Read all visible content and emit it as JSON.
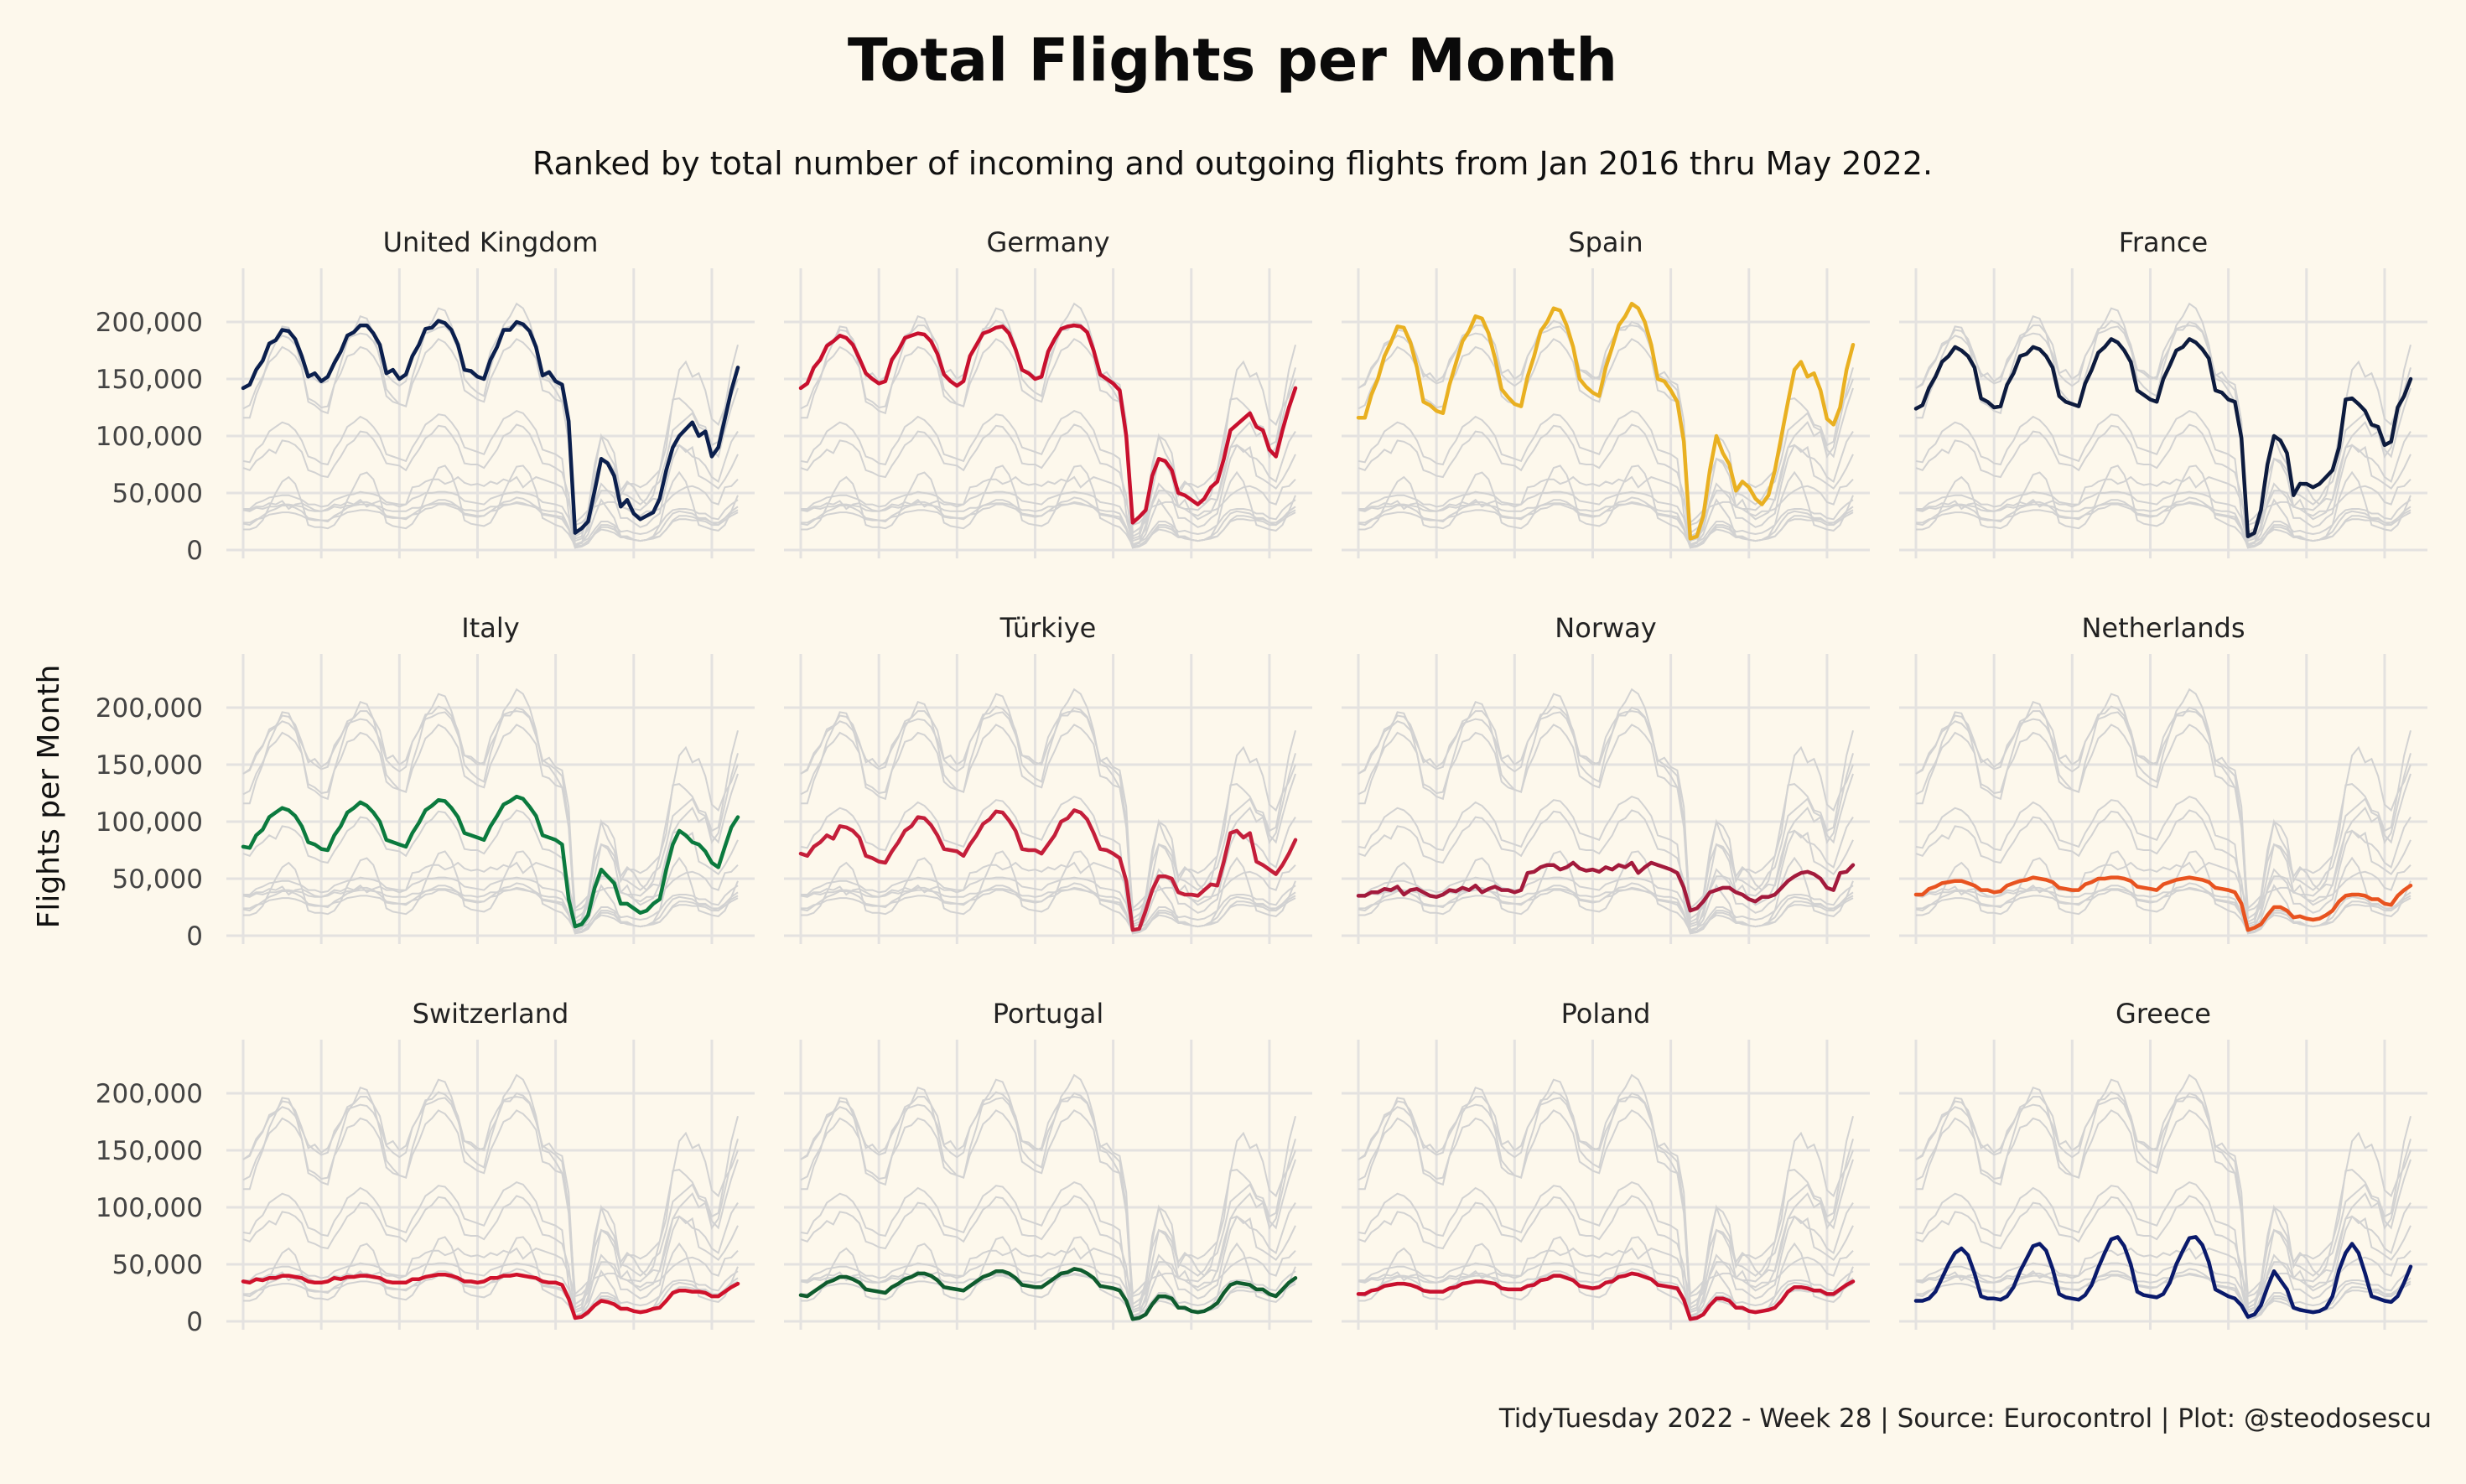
{
  "chart_data": {
    "type": "line",
    "title": "Total Flights per Month",
    "subtitle": "Ranked by total number of incoming and outgoing flights from Jan 2016 thru May 2022.",
    "ylabel": "Flights per Month",
    "xlabel": "",
    "caption": "TidyTuesday 2022 - Week 28 | Source: Eurocontrol | Plot: @steodosescu",
    "x_start": "2016-01",
    "x_end": "2022-05",
    "ylim": [
      0,
      225000
    ],
    "yticks": [
      0,
      50000,
      100000,
      150000,
      200000
    ],
    "ytick_labels": [
      "0",
      "50,000",
      "100,000",
      "150,000",
      "200,000"
    ],
    "grid": true,
    "layout": "facet 3 rows x 4 columns, ranked",
    "series": [
      {
        "name": "United Kingdom",
        "color": "#0b1f4d",
        "values": [
          142000,
          145000,
          158000,
          166000,
          181000,
          184000,
          193000,
          192000,
          185000,
          170000,
          152000,
          155000,
          148000,
          152000,
          164000,
          174000,
          188000,
          191000,
          197000,
          197000,
          190000,
          180000,
          155000,
          158000,
          150000,
          154000,
          170000,
          180000,
          194000,
          195000,
          201000,
          199000,
          193000,
          180000,
          158000,
          157000,
          152000,
          150000,
          167000,
          178000,
          193000,
          193000,
          200000,
          198000,
          192000,
          178000,
          153000,
          156000,
          148000,
          145000,
          113000,
          15000,
          19000,
          25000,
          52000,
          80000,
          76000,
          65000,
          38000,
          44000,
          32000,
          27000,
          30000,
          33000,
          45000,
          70000,
          90000,
          100000,
          106000,
          112000,
          100000,
          104000,
          82000,
          90000,
          115000,
          140000,
          160000
        ]
      },
      {
        "name": "Germany",
        "color": "#c8102e",
        "values": [
          142000,
          146000,
          160000,
          167000,
          179000,
          183000,
          188000,
          186000,
          180000,
          168000,
          155000,
          150000,
          146000,
          148000,
          167000,
          175000,
          186000,
          188000,
          190000,
          189000,
          183000,
          172000,
          154000,
          148000,
          144000,
          148000,
          170000,
          180000,
          190000,
          192000,
          195000,
          196000,
          190000,
          176000,
          158000,
          155000,
          150000,
          152000,
          174000,
          185000,
          194000,
          196000,
          197000,
          196000,
          191000,
          175000,
          154000,
          150000,
          146000,
          140000,
          100000,
          24000,
          29000,
          35000,
          65000,
          80000,
          78000,
          70000,
          50000,
          48000,
          44000,
          40000,
          45000,
          55000,
          60000,
          80000,
          105000,
          110000,
          115000,
          120000,
          108000,
          105000,
          88000,
          82000,
          105000,
          125000,
          142000
        ]
      },
      {
        "name": "Spain",
        "color": "#e9b021",
        "values": [
          116000,
          116000,
          136000,
          150000,
          170000,
          182000,
          196000,
          195000,
          182000,
          160000,
          130000,
          127000,
          122000,
          120000,
          145000,
          164000,
          183000,
          192000,
          205000,
          203000,
          190000,
          168000,
          141000,
          134000,
          128000,
          126000,
          152000,
          170000,
          192000,
          200000,
          212000,
          210000,
          197000,
          178000,
          150000,
          143000,
          138000,
          135000,
          160000,
          178000,
          197000,
          205000,
          216000,
          212000,
          200000,
          180000,
          150000,
          148000,
          140000,
          130000,
          95000,
          10000,
          12000,
          30000,
          70000,
          100000,
          85000,
          75000,
          52000,
          60000,
          55000,
          45000,
          40000,
          48000,
          70000,
          100000,
          130000,
          158000,
          165000,
          152000,
          155000,
          140000,
          115000,
          110000,
          125000,
          158000,
          180000
        ]
      },
      {
        "name": "France",
        "color": "#0d1b3e",
        "values": [
          124000,
          127000,
          142000,
          152000,
          165000,
          170000,
          178000,
          175000,
          170000,
          160000,
          133000,
          130000,
          125000,
          126000,
          145000,
          155000,
          170000,
          172000,
          178000,
          176000,
          170000,
          160000,
          135000,
          130000,
          128000,
          126000,
          146000,
          158000,
          173000,
          178000,
          185000,
          182000,
          175000,
          165000,
          140000,
          136000,
          132000,
          130000,
          150000,
          162000,
          175000,
          178000,
          185000,
          182000,
          176000,
          168000,
          140000,
          138000,
          132000,
          130000,
          98000,
          12000,
          15000,
          35000,
          75000,
          100000,
          96000,
          85000,
          48000,
          58000,
          58000,
          55000,
          58000,
          64000,
          70000,
          90000,
          132000,
          133000,
          128000,
          122000,
          110000,
          108000,
          92000,
          95000,
          125000,
          135000,
          150000
        ]
      },
      {
        "name": "Italy",
        "color": "#0b7a3e",
        "values": [
          78000,
          77000,
          88000,
          93000,
          104000,
          108000,
          112000,
          110000,
          105000,
          96000,
          82000,
          80000,
          76000,
          75000,
          88000,
          96000,
          108000,
          112000,
          117000,
          114000,
          108000,
          100000,
          84000,
          82000,
          80000,
          78000,
          90000,
          99000,
          110000,
          114000,
          119000,
          118000,
          112000,
          104000,
          90000,
          88000,
          86000,
          84000,
          96000,
          105000,
          115000,
          118000,
          122000,
          120000,
          113000,
          105000,
          88000,
          86000,
          84000,
          80000,
          32000,
          8000,
          10000,
          18000,
          42000,
          58000,
          52000,
          46000,
          28000,
          28000,
          24000,
          20000,
          22000,
          28000,
          32000,
          58000,
          80000,
          92000,
          88000,
          82000,
          80000,
          74000,
          64000,
          60000,
          78000,
          95000,
          104000
        ]
      },
      {
        "name": "Türkiye",
        "color": "#c41e3a",
        "values": [
          72000,
          70000,
          78000,
          82000,
          88000,
          85000,
          96000,
          95000,
          92000,
          86000,
          70000,
          68000,
          65000,
          64000,
          74000,
          82000,
          92000,
          96000,
          104000,
          103000,
          97000,
          88000,
          76000,
          75000,
          74000,
          70000,
          80000,
          88000,
          98000,
          102000,
          109000,
          108000,
          101000,
          92000,
          76000,
          75000,
          75000,
          72000,
          80000,
          88000,
          100000,
          103000,
          110000,
          108000,
          102000,
          90000,
          76000,
          75000,
          72000,
          68000,
          48000,
          5000,
          6000,
          22000,
          40000,
          52000,
          52000,
          50000,
          38000,
          36000,
          36000,
          35000,
          40000,
          45000,
          44000,
          65000,
          90000,
          92000,
          86000,
          90000,
          65000,
          62000,
          58000,
          54000,
          62000,
          72000,
          84000
        ]
      },
      {
        "name": "Norway",
        "color": "#a31a3c",
        "values": [
          35000,
          35000,
          38000,
          38000,
          41000,
          40000,
          43000,
          36000,
          40000,
          41000,
          38000,
          35000,
          34000,
          36000,
          40000,
          39000,
          42000,
          40000,
          44000,
          38000,
          41000,
          43000,
          40000,
          40000,
          38000,
          40000,
          55000,
          56000,
          60000,
          62000,
          62000,
          58000,
          60000,
          64000,
          59000,
          57000,
          58000,
          56000,
          60000,
          58000,
          62000,
          60000,
          64000,
          55000,
          60000,
          64000,
          62000,
          60000,
          58000,
          55000,
          42000,
          22000,
          24000,
          30000,
          38000,
          40000,
          42000,
          42000,
          38000,
          36000,
          32000,
          30000,
          34000,
          34000,
          36000,
          42000,
          48000,
          52000,
          55000,
          56000,
          54000,
          50000,
          42000,
          40000,
          55000,
          56000,
          62000
        ]
      },
      {
        "name": "Netherlands",
        "color": "#e8531f",
        "values": [
          36000,
          36000,
          41000,
          43000,
          46000,
          47000,
          48000,
          48000,
          46000,
          44000,
          40000,
          40000,
          38000,
          39000,
          44000,
          46000,
          48000,
          49000,
          51000,
          50000,
          49000,
          47000,
          42000,
          41000,
          40000,
          40000,
          45000,
          47000,
          50000,
          50000,
          51000,
          51000,
          50000,
          48000,
          43000,
          42000,
          41000,
          40000,
          45000,
          47000,
          49000,
          50000,
          51000,
          50000,
          49000,
          47000,
          42000,
          41000,
          40000,
          38000,
          28000,
          5000,
          7000,
          10000,
          18000,
          25000,
          25000,
          22000,
          16000,
          17000,
          15000,
          14000,
          15000,
          18000,
          22000,
          30000,
          35000,
          36000,
          36000,
          35000,
          32000,
          32000,
          28000,
          27000,
          35000,
          40000,
          44000
        ]
      },
      {
        "name": "Switzerland",
        "color": "#d0112b",
        "values": [
          35000,
          34000,
          37000,
          36000,
          38000,
          38000,
          40000,
          40000,
          39000,
          38000,
          35000,
          34000,
          34000,
          35000,
          38000,
          37000,
          39000,
          39000,
          40000,
          40000,
          39000,
          38000,
          35000,
          34000,
          34000,
          34000,
          37000,
          37000,
          39000,
          40000,
          41000,
          41000,
          40000,
          38000,
          35000,
          35000,
          34000,
          35000,
          38000,
          38000,
          40000,
          40000,
          41000,
          40000,
          39000,
          38000,
          35000,
          34000,
          34000,
          32000,
          20000,
          3000,
          4000,
          8000,
          14000,
          18000,
          17000,
          15000,
          11000,
          11000,
          9000,
          8000,
          9000,
          11000,
          12000,
          18000,
          25000,
          27000,
          27000,
          26000,
          26000,
          25000,
          22000,
          22000,
          26000,
          30000,
          33000
        ]
      },
      {
        "name": "Portugal",
        "color": "#0f5c2e",
        "values": [
          23000,
          22000,
          26000,
          30000,
          34000,
          36000,
          39000,
          39000,
          37000,
          34000,
          28000,
          27000,
          26000,
          25000,
          30000,
          33000,
          37000,
          39000,
          42000,
          42000,
          40000,
          36000,
          30000,
          29000,
          28000,
          27000,
          31000,
          35000,
          39000,
          41000,
          44000,
          44000,
          42000,
          38000,
          32000,
          31000,
          30000,
          30000,
          34000,
          38000,
          42000,
          43000,
          46000,
          45000,
          42000,
          38000,
          31000,
          30000,
          29000,
          27000,
          18000,
          2000,
          3000,
          6000,
          15000,
          22000,
          22000,
          20000,
          12000,
          12000,
          9000,
          8000,
          9000,
          12000,
          16000,
          25000,
          32000,
          34000,
          33000,
          32000,
          28000,
          28000,
          24000,
          22000,
          28000,
          34000,
          38000
        ]
      },
      {
        "name": "Poland",
        "color": "#c8102e",
        "values": [
          24000,
          24000,
          27000,
          28000,
          31000,
          32000,
          33000,
          33000,
          32000,
          30000,
          27000,
          26000,
          26000,
          26000,
          29000,
          30000,
          33000,
          34000,
          35000,
          35000,
          34000,
          33000,
          29000,
          28000,
          28000,
          28000,
          31000,
          32000,
          36000,
          37000,
          40000,
          40000,
          38000,
          36000,
          31000,
          30000,
          29000,
          30000,
          34000,
          35000,
          39000,
          40000,
          42000,
          41000,
          39000,
          37000,
          32000,
          31000,
          30000,
          29000,
          19000,
          2000,
          3000,
          6000,
          14000,
          20000,
          20000,
          18000,
          12000,
          12000,
          9000,
          8000,
          9000,
          10000,
          12000,
          18000,
          26000,
          30000,
          30000,
          29000,
          27000,
          27000,
          24000,
          24000,
          28000,
          32000,
          35000
        ]
      },
      {
        "name": "Greece",
        "color": "#0a1a6b",
        "values": [
          18000,
          18000,
          20000,
          26000,
          38000,
          50000,
          60000,
          64000,
          58000,
          42000,
          22000,
          20000,
          20000,
          19000,
          22000,
          30000,
          44000,
          55000,
          66000,
          68000,
          62000,
          46000,
          24000,
          21000,
          20000,
          19000,
          23000,
          32000,
          47000,
          60000,
          72000,
          74000,
          66000,
          50000,
          26000,
          23000,
          22000,
          21000,
          24000,
          34000,
          50000,
          62000,
          73000,
          74000,
          67000,
          52000,
          28000,
          25000,
          22000,
          20000,
          14000,
          4000,
          6000,
          14000,
          30000,
          44000,
          36000,
          28000,
          12000,
          10000,
          9000,
          8000,
          9000,
          12000,
          22000,
          45000,
          60000,
          68000,
          60000,
          42000,
          22000,
          20000,
          18000,
          17000,
          22000,
          34000,
          48000
        ]
      }
    ]
  }
}
